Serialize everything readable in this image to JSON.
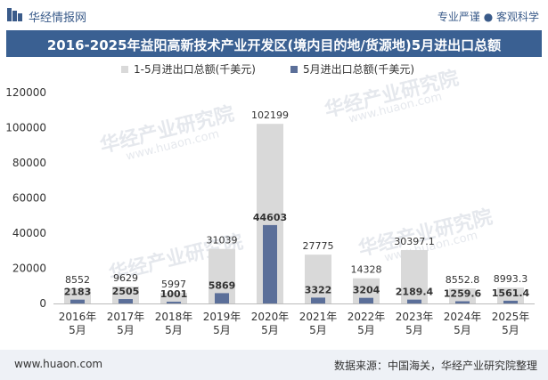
{
  "header": {
    "brand": "华经情报网",
    "slogan": "专业严谨 ● 客观科学"
  },
  "title": "2016-2025年益阳高新技术产业开发区(境内目的地/货源地)5月进出口总额",
  "footer": {
    "website": "www.huaon.com",
    "source": "数据来源：中国海关，华经产业研究院整理"
  },
  "watermark": {
    "brand": "华经产业研究院",
    "url": "www.huaon.com"
  },
  "colors": {
    "header_blue": "#3a6092",
    "series1": "#d9d9d9",
    "series2": "#5b6f99"
  },
  "chart_data": {
    "type": "bar",
    "categories": [
      "2016年\n5月",
      "2017年\n5月",
      "2018年\n5月",
      "2019年\n5月",
      "2020年\n5月",
      "2021年\n5月",
      "2022年\n5月",
      "2023年\n5月",
      "2024年\n5月",
      "2025年\n5月"
    ],
    "series": [
      {
        "name": "1-5月进出口总额(千美元)",
        "values": [
          8552,
          9629,
          5997,
          31039,
          102199,
          27775,
          14328,
          30397.1,
          8552.8,
          8993.3
        ],
        "labels": [
          "8552",
          "9629",
          "5997",
          "31039",
          "102199",
          "27775",
          "14328",
          "30397.1",
          "8552.8",
          "8993.3"
        ]
      },
      {
        "name": "5月进出口总额(千美元)",
        "values": [
          2183,
          2505,
          1001,
          5869,
          44603,
          3322,
          3204,
          2189.4,
          1259.6,
          1561.4
        ],
        "labels": [
          "2183",
          "2505",
          "1001",
          "5869",
          "44603",
          "3322",
          "3204",
          "2189.4",
          "1259.6",
          "1561.4"
        ]
      }
    ],
    "yticks": [
      "0",
      "20000",
      "40000",
      "60000",
      "80000",
      "100000",
      "120000"
    ],
    "ylim": [
      0,
      120000
    ],
    "grid": false,
    "legend": "top-center"
  }
}
